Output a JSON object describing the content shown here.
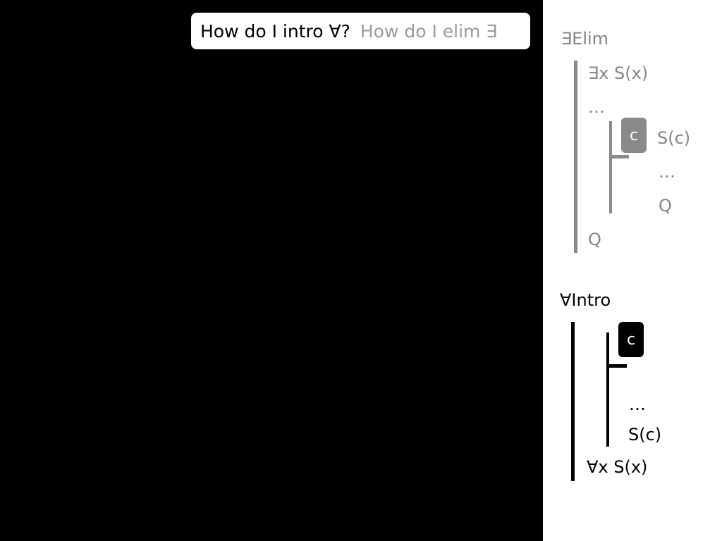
{
  "query": {
    "text": "How do I intro ∀?",
    "suggestion": "How do I elim ∃"
  },
  "exists_elim": {
    "title": "∃Elim",
    "premise": "∃x S(x)",
    "dots_outer": "…",
    "witness": "c",
    "assumption": "S(c)",
    "dots_inner": "…",
    "inner_conclusion": "Q",
    "conclusion": "Q"
  },
  "forall_intro": {
    "title": "∀Intro",
    "witness": "c",
    "dots": "…",
    "inner_conclusion": "S(c)",
    "conclusion": "∀x S(x)"
  },
  "colors": {
    "background": "#000000",
    "panel": "#ffffff",
    "inactive": "#858585",
    "active": "#000000"
  }
}
